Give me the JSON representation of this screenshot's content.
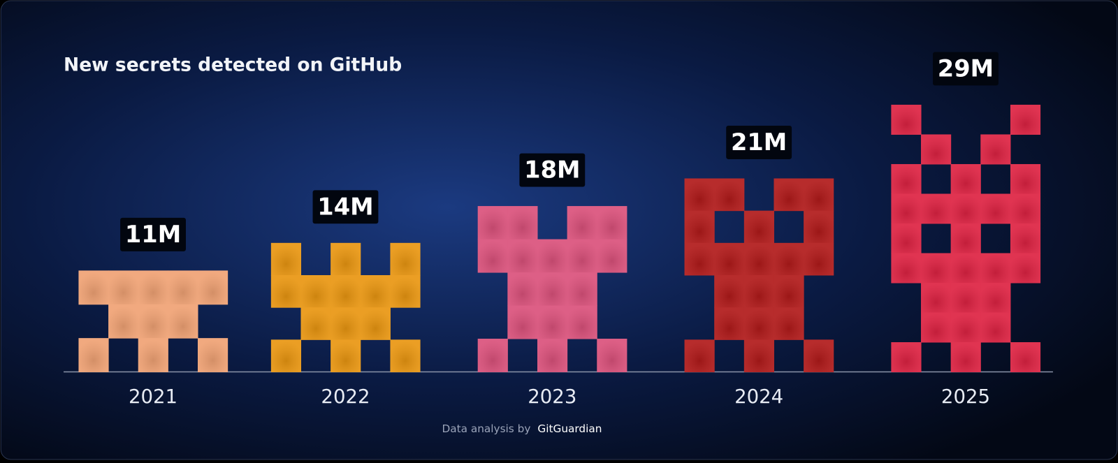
{
  "chart_data": {
    "type": "bar",
    "title": "New secrets detected on GitHub",
    "categories": [
      "2021",
      "2022",
      "2023",
      "2024",
      "2025"
    ],
    "values": [
      11,
      14,
      18,
      21,
      29
    ],
    "value_labels": [
      "11M",
      "14M",
      "18M",
      "21M",
      "29M"
    ],
    "colors": [
      "#f0a274",
      "#e99611",
      "#da517b",
      "#b11a1a",
      "#dd2242"
    ],
    "source_text": "Data analysis by",
    "source_name": "GitGuardian"
  }
}
